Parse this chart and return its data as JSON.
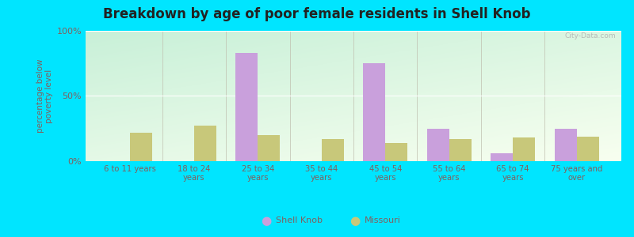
{
  "title": "Breakdown by age of poor female residents in Shell Knob",
  "ylabel": "percentage below\npoverty level",
  "categories": [
    "6 to 11 years",
    "18 to 24\nyears",
    "25 to 34\nyears",
    "35 to 44\nyears",
    "45 to 54\nyears",
    "55 to 64\nyears",
    "65 to 74\nyears",
    "75 years and\nover"
  ],
  "shell_knob": [
    0,
    0,
    83,
    0,
    75,
    25,
    6,
    25
  ],
  "missouri": [
    22,
    27,
    20,
    17,
    14,
    17,
    18,
    19
  ],
  "shell_knob_color": "#c9a0dc",
  "missouri_color": "#c8c87a",
  "bar_width": 0.35,
  "ylim": [
    0,
    100
  ],
  "yticks": [
    0,
    50,
    100
  ],
  "ytick_labels": [
    "0%",
    "50%",
    "100%"
  ],
  "bg_color_topleft": "#c8f0d8",
  "bg_color_bottomright": "#f8fff0",
  "outer_bg": "#00e5ff",
  "title_fontsize": 12,
  "axis_label_color": "#806060",
  "tick_color": "#806060",
  "legend_labels": [
    "Shell Knob",
    "Missouri"
  ],
  "watermark": "City-Data.com"
}
